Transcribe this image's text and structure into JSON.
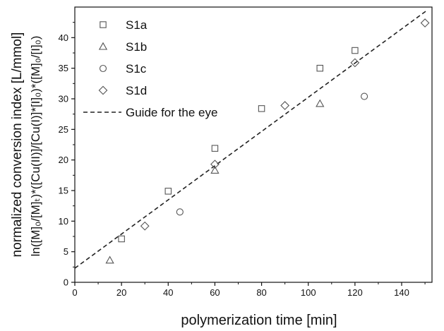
{
  "chart_data": {
    "type": "scatter",
    "title": "",
    "xlabel": "polymerization time [min]",
    "ylabel_line1": "normalized conversion index [L/mmol]",
    "ylabel_line2": "ln([M]₀/[M]ₜ)*([Cu(II)]/[Cu(I)]*[I]₀)*([M]₀/[I]₀)",
    "xlim": [
      0,
      153
    ],
    "ylim": [
      0,
      45
    ],
    "xticks": [
      0,
      20,
      40,
      60,
      80,
      100,
      120,
      140
    ],
    "yticks": [
      0,
      5,
      10,
      15,
      20,
      25,
      30,
      35,
      40
    ],
    "grid": false,
    "legend_position": "top-left",
    "series": [
      {
        "name": "S1a",
        "marker": "square",
        "x": [
          20,
          40,
          60,
          80,
          105,
          120
        ],
        "y": [
          7.1,
          14.9,
          21.9,
          28.4,
          35.0,
          37.9
        ]
      },
      {
        "name": "S1b",
        "marker": "triangle",
        "x": [
          15,
          60,
          105
        ],
        "y": [
          3.6,
          18.3,
          29.2
        ]
      },
      {
        "name": "S1c",
        "marker": "circle",
        "x": [
          45,
          124
        ],
        "y": [
          11.5,
          30.4
        ]
      },
      {
        "name": "S1d",
        "marker": "diamond",
        "x": [
          30,
          60,
          90,
          120,
          150
        ],
        "y": [
          9.2,
          19.3,
          28.9,
          35.9,
          42.4
        ]
      }
    ],
    "guide_line": {
      "name": "Guide for the eye",
      "style": "dashed",
      "x": [
        0,
        151
      ],
      "y": [
        2.3,
        44.5
      ]
    },
    "colors": {
      "marker": "#555555",
      "axis": "#111111",
      "line": "#222222"
    }
  }
}
